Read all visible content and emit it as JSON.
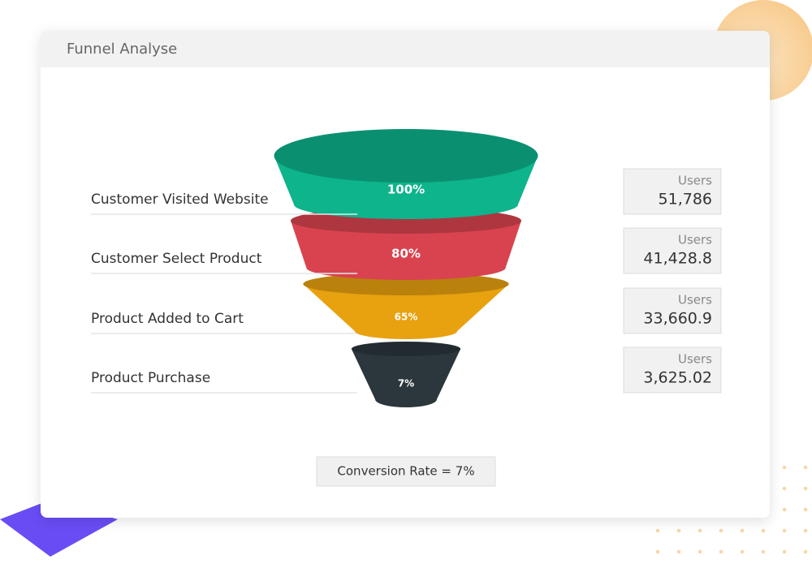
{
  "chart_data": {
    "type": "funnel",
    "title": "Funnel Analyse",
    "categories": [
      "Customer Visited Website",
      "Customer Select Product",
      "Product Added to Cart",
      "Product Purchase"
    ],
    "values": [
      100,
      80,
      65,
      7
    ],
    "value_labels": [
      "100%",
      "80%",
      "65%",
      "7%"
    ],
    "colors": [
      "#0db48c",
      "#d9434f",
      "#e8a10f",
      "#2b373c"
    ],
    "users": {
      "name": "Users",
      "values": [
        51786,
        41428.8,
        33660.9,
        3625.02
      ],
      "value_labels": [
        "51,786",
        "41,428.8",
        "33,660.9",
        "3,625.02"
      ]
    },
    "annotation": "Conversion Rate = 7%"
  }
}
